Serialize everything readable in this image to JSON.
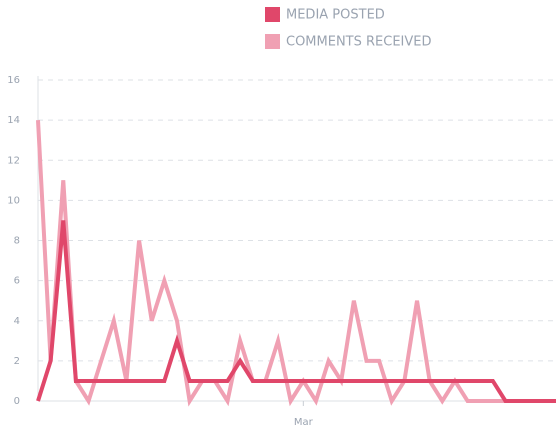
{
  "chart_data": {
    "type": "line",
    "categories": [
      null,
      null,
      null,
      null,
      null,
      null,
      null,
      null,
      null,
      null,
      null,
      null,
      null,
      null,
      null,
      null,
      null,
      null,
      null,
      null,
      null,
      "Mar",
      null,
      null,
      null,
      null,
      null,
      null,
      null,
      null,
      null,
      null,
      null,
      null,
      null,
      null,
      null,
      null,
      null,
      null,
      null,
      null
    ],
    "series": [
      {
        "name": "MEDIA POSTED",
        "color": "#e0476a",
        "values": [
          0,
          2,
          9,
          1,
          1,
          1,
          1,
          1,
          1,
          1,
          1,
          3,
          1,
          1,
          1,
          1,
          2,
          1,
          1,
          1,
          1,
          1,
          1,
          1,
          1,
          1,
          1,
          1,
          1,
          1,
          1,
          1,
          1,
          1,
          1,
          1,
          1,
          0,
          0,
          0,
          0,
          0
        ]
      },
      {
        "name": "COMMENTS RECEIVED",
        "color": "#f0a0b3",
        "values": [
          14,
          2,
          11,
          1,
          0,
          2,
          4,
          1,
          8,
          4,
          6,
          4,
          0,
          1,
          1,
          0,
          3,
          1,
          1,
          3,
          0,
          1,
          0,
          2,
          1,
          5,
          2,
          2,
          0,
          1,
          5,
          1,
          0,
          1,
          0,
          0,
          0,
          0,
          0,
          0,
          0,
          0
        ]
      }
    ],
    "ylim": [
      0,
      16
    ],
    "yticks": [
      0,
      2,
      4,
      6,
      8,
      10,
      12,
      14,
      16
    ],
    "grid": true,
    "legend": "top"
  }
}
